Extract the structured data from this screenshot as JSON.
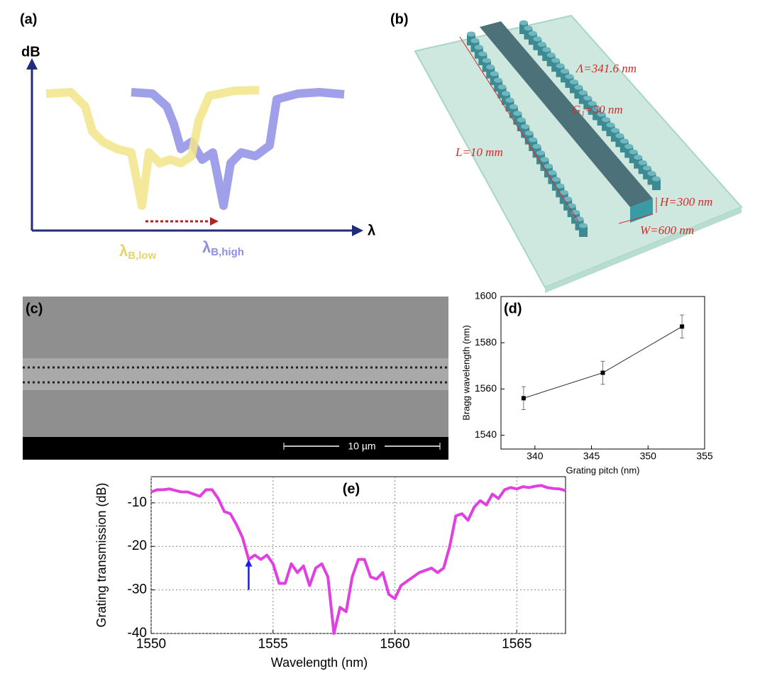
{
  "panel_a": {
    "label": "(a)",
    "y_label": "dB",
    "x_label": "λ",
    "low": {
      "symbol": "λ",
      "sub": "B,low"
    },
    "high": {
      "symbol": "λ",
      "sub": "B,high"
    }
  },
  "panel_b": {
    "label": "(b)",
    "annotations": [
      "Λ=341.6 nm",
      "G₁=50 nm",
      "L=10 mm",
      "H=300 nm",
      "W=600 nm"
    ]
  },
  "panel_c": {
    "label": "(c)",
    "scale_bar": "10 µm"
  },
  "chart_data": [
    {
      "type": "scatter",
      "title": "(d)",
      "x_label": "Grating pitch (nm)",
      "y_label": "Bragg wavelength (nm)",
      "x": [
        339,
        346,
        353
      ],
      "values": [
        1556,
        1567,
        1587
      ],
      "errors": [
        5,
        5,
        5
      ],
      "color": "#000000",
      "connect": true,
      "xlim": [
        337,
        355
      ],
      "xticks": [
        340,
        345,
        350,
        355
      ],
      "ylim": [
        1534,
        1600
      ],
      "yticks": [
        1540,
        1560,
        1580,
        1600
      ],
      "grid": false
    },
    {
      "type": "line",
      "title": "(e)",
      "x_label": "Wavelength (nm)",
      "y_label": "Grating transmission (dB)",
      "x": [
        1550,
        1550.25,
        1550.5,
        1550.75,
        1551,
        1551.25,
        1551.5,
        1551.75,
        1552,
        1552.25,
        1552.5,
        1552.75,
        1553,
        1553.25,
        1553.5,
        1553.75,
        1554,
        1554.25,
        1554.5,
        1554.75,
        1555,
        1555.25,
        1555.5,
        1555.75,
        1556,
        1556.25,
        1556.5,
        1556.75,
        1557,
        1557.25,
        1557.5,
        1557.75,
        1558,
        1558.25,
        1558.5,
        1558.75,
        1559,
        1559.25,
        1559.5,
        1559.75,
        1560,
        1560.25,
        1560.5,
        1560.75,
        1561,
        1561.25,
        1561.5,
        1561.75,
        1562,
        1562.25,
        1562.5,
        1562.75,
        1563,
        1563.25,
        1563.5,
        1563.75,
        1564,
        1564.25,
        1564.5,
        1564.75,
        1565,
        1565.25,
        1565.5,
        1565.75,
        1566,
        1566.25,
        1566.5,
        1566.75,
        1567
      ],
      "values": [
        -7.5,
        -7,
        -7,
        -6.8,
        -7.2,
        -7.5,
        -7.5,
        -8,
        -8.5,
        -7,
        -7,
        -9,
        -12,
        -12.5,
        -15,
        -18,
        -23,
        -22,
        -23,
        -22,
        -24,
        -28.5,
        -28.5,
        -24,
        -26,
        -24.5,
        -29,
        -25,
        -24,
        -27,
        -40,
        -34,
        -35,
        -27,
        -23,
        -23,
        -27,
        -27.5,
        -26,
        -31,
        -32,
        -29,
        -28,
        -27,
        -26,
        -25.5,
        -25,
        -26,
        -25,
        -20,
        -13,
        -12.5,
        -14,
        -11,
        -9.5,
        -10.5,
        -8,
        -9,
        -7,
        -6.5,
        -6.8,
        -6.3,
        -6.5,
        -6.2,
        -6,
        -6.5,
        -6.7,
        -6.8,
        -7.2
      ],
      "color": "#e040e0",
      "xlim": [
        1550,
        1567
      ],
      "xticks": [
        1550,
        1555,
        1560,
        1565
      ],
      "ylim": [
        -40,
        -4
      ],
      "yticks": [
        -40,
        -30,
        -20,
        -10
      ],
      "grid": true,
      "arrow": {
        "x": 1554,
        "y_from": -30,
        "y_to": -23,
        "color": "#1a1aff"
      }
    }
  ]
}
